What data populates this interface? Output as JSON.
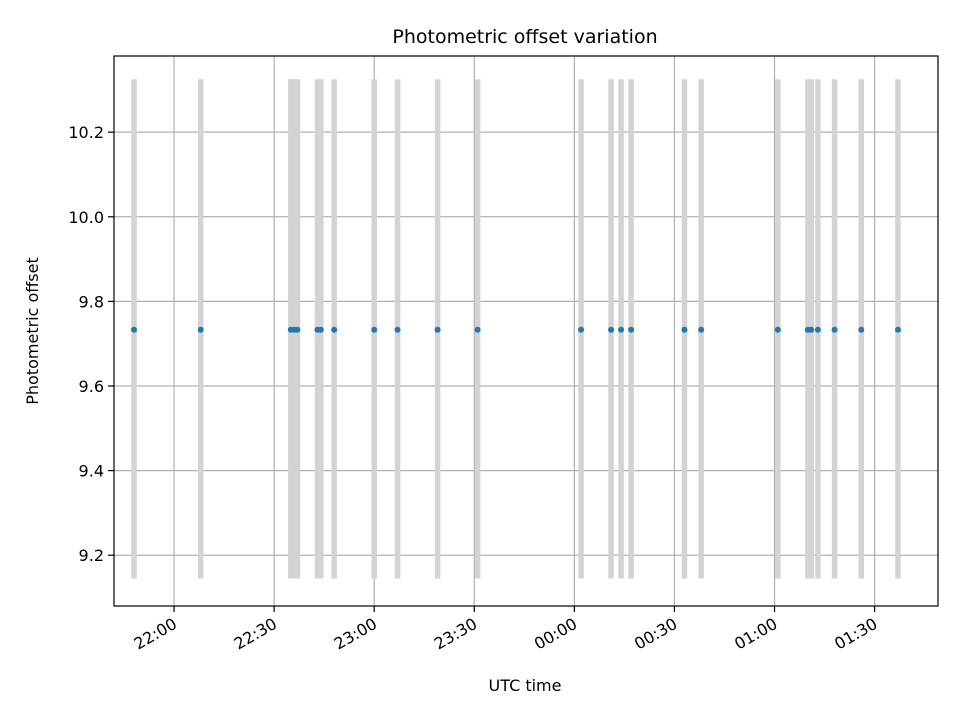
{
  "chart_data": {
    "type": "scatter",
    "title": "Photometric offset variation",
    "xlabel": "UTC time",
    "ylabel": "Photometric offset",
    "xlim": [
      "21:42",
      "01:49"
    ],
    "ylim": [
      9.08,
      10.38
    ],
    "xticks": [
      "22:00",
      "22:30",
      "23:00",
      "23:30",
      "00:00",
      "00:30",
      "01:00",
      "01:30"
    ],
    "yticks": [
      "9.2",
      "9.4",
      "9.6",
      "9.8",
      "10.0",
      "10.2"
    ],
    "grid": true,
    "legend": "none",
    "marker_color": "#1f77b4",
    "errorbar_color": "#d3d3d3",
    "errorbar_range": [
      9.145,
      10.325
    ],
    "points": [
      {
        "x": "21:48",
        "y": 9.733
      },
      {
        "x": "22:08",
        "y": 9.733
      },
      {
        "x": "22:35",
        "y": 9.733
      },
      {
        "x": "22:36",
        "y": 9.733
      },
      {
        "x": "22:37",
        "y": 9.733
      },
      {
        "x": "22:43",
        "y": 9.733
      },
      {
        "x": "22:44",
        "y": 9.733
      },
      {
        "x": "22:48",
        "y": 9.733
      },
      {
        "x": "23:00",
        "y": 9.733
      },
      {
        "x": "23:07",
        "y": 9.733
      },
      {
        "x": "23:19",
        "y": 9.733
      },
      {
        "x": "23:31",
        "y": 9.733
      },
      {
        "x": "00:02",
        "y": 9.733
      },
      {
        "x": "00:11",
        "y": 9.733
      },
      {
        "x": "00:14",
        "y": 9.733
      },
      {
        "x": "00:17",
        "y": 9.733
      },
      {
        "x": "00:33",
        "y": 9.733
      },
      {
        "x": "00:38",
        "y": 9.733
      },
      {
        "x": "01:01",
        "y": 9.733
      },
      {
        "x": "01:10",
        "y": 9.733
      },
      {
        "x": "01:11",
        "y": 9.733
      },
      {
        "x": "01:13",
        "y": 9.733
      },
      {
        "x": "01:18",
        "y": 9.733
      },
      {
        "x": "01:26",
        "y": 9.733
      },
      {
        "x": "01:37",
        "y": 9.733
      }
    ]
  }
}
